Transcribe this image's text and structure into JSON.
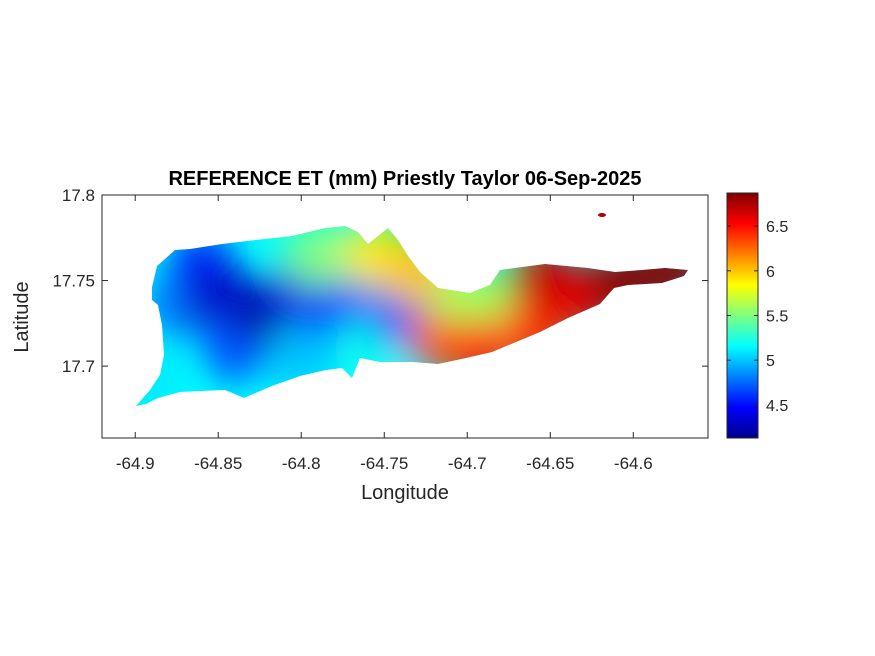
{
  "chart_data": {
    "type": "heatmap",
    "title": "REFERENCE ET (mm) Priestly Taylor 06-Sep-2025",
    "xlabel": "Longitude",
    "ylabel": "Latitude",
    "xlim": [
      -64.92,
      -64.555
    ],
    "ylim": [
      17.658,
      17.8
    ],
    "x_ticks": [
      -64.9,
      -64.85,
      -64.8,
      -64.75,
      -64.7,
      -64.65,
      -64.6
    ],
    "x_tick_labels": [
      "-64.9",
      "-64.85",
      "-64.8",
      "-64.75",
      "-64.7",
      "-64.65",
      "-64.6"
    ],
    "y_ticks": [
      17.7,
      17.75,
      17.8
    ],
    "y_tick_labels": [
      "17.7",
      "17.75",
      "17.8"
    ],
    "colorbar": {
      "colormap": "jet",
      "range": [
        4.13,
        6.87
      ],
      "ticks": [
        4.5,
        5,
        5.5,
        6,
        6.5
      ],
      "tick_labels": [
        "4.5",
        "5",
        "5.5",
        "6",
        "6.5"
      ],
      "colors": [
        "#00008f",
        "#0000ff",
        "#00ffff",
        "#ffff00",
        "#ff0000",
        "#800000"
      ]
    },
    "grid": false,
    "samples": [
      {
        "lon": -64.89,
        "lat": 17.69,
        "et": 5.1
      },
      {
        "lon": -64.875,
        "lat": 17.735,
        "et": 4.8
      },
      {
        "lon": -64.86,
        "lat": 17.76,
        "et": 4.6
      },
      {
        "lon": -64.85,
        "lat": 17.74,
        "et": 4.3
      },
      {
        "lon": -64.84,
        "lat": 17.71,
        "et": 4.7
      },
      {
        "lon": -64.82,
        "lat": 17.73,
        "et": 4.2
      },
      {
        "lon": -64.8,
        "lat": 17.745,
        "et": 4.4
      },
      {
        "lon": -64.8,
        "lat": 17.705,
        "et": 5.0
      },
      {
        "lon": -64.79,
        "lat": 17.765,
        "et": 5.5
      },
      {
        "lon": -64.775,
        "lat": 17.73,
        "et": 4.6
      },
      {
        "lon": -64.76,
        "lat": 17.71,
        "et": 5.2
      },
      {
        "lon": -64.755,
        "lat": 17.765,
        "et": 5.9
      },
      {
        "lon": -64.74,
        "lat": 17.73,
        "et": 4.7
      },
      {
        "lon": -64.73,
        "lat": 17.755,
        "et": 6.0
      },
      {
        "lon": -64.715,
        "lat": 17.715,
        "et": 6.3
      },
      {
        "lon": -64.7,
        "lat": 17.74,
        "et": 5.6
      },
      {
        "lon": -64.69,
        "lat": 17.71,
        "et": 6.5
      },
      {
        "lon": -64.67,
        "lat": 17.735,
        "et": 5.6
      },
      {
        "lon": -64.66,
        "lat": 17.72,
        "et": 6.4
      },
      {
        "lon": -64.655,
        "lat": 17.752,
        "et": 6.7
      },
      {
        "lon": -64.63,
        "lat": 17.74,
        "et": 6.6
      },
      {
        "lon": -64.605,
        "lat": 17.75,
        "et": 6.85
      },
      {
        "lon": -64.575,
        "lat": 17.755,
        "et": 6.85
      }
    ]
  }
}
